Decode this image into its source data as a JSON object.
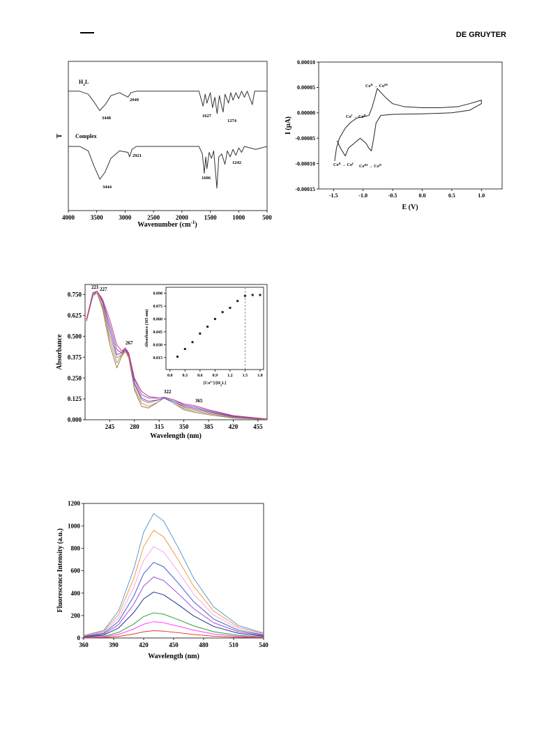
{
  "header": {
    "publisher": "DE GRUYTER"
  },
  "chart_data": [
    {
      "type": "line",
      "xlabel": [
        "Wavenumber (cm",
        "-1",
        ")"
      ],
      "ylabel": "T",
      "xlim": [
        4000,
        500
      ],
      "xticks": [
        4000,
        3500,
        3000,
        2500,
        2000,
        1500,
        1000,
        500
      ],
      "ylim": [
        0,
        100
      ],
      "series": [
        {
          "name": [
            "H",
            "2",
            "L"
          ],
          "color": "#333333",
          "x": [
            4000,
            3800,
            3650,
            3550,
            3448,
            3350,
            3250,
            3100,
            2949,
            2900,
            2800,
            2000,
            1700,
            1627,
            1590,
            1560,
            1500,
            1460,
            1420,
            1380,
            1340,
            1300,
            1274,
            1240,
            1180,
            1140,
            1100,
            1050,
            1000,
            950,
            900,
            850,
            760,
            720,
            500
          ],
          "values": [
            80,
            80,
            78,
            73,
            67,
            71,
            77,
            79,
            76,
            79,
            80,
            80,
            80,
            70,
            78,
            72,
            79,
            69,
            76,
            65,
            77,
            70,
            66,
            78,
            72,
            79,
            74,
            79,
            75,
            80,
            76,
            80,
            71,
            80,
            80
          ]
        },
        {
          "name": "Complex",
          "color": "#333333",
          "x": [
            4000,
            3800,
            3650,
            3550,
            3444,
            3350,
            3250,
            3100,
            2950,
            2921,
            2880,
            2800,
            2000,
            1700,
            1640,
            1606,
            1580,
            1560,
            1520,
            1480,
            1440,
            1384,
            1350,
            1300,
            1242,
            1200,
            1150,
            1100,
            1050,
            1000,
            950,
            900,
            800,
            700,
            500
          ],
          "values": [
            43,
            43,
            40,
            30,
            21,
            26,
            35,
            40,
            39,
            36,
            41,
            43,
            43,
            43,
            38,
            25,
            36,
            28,
            39,
            35,
            40,
            15,
            36,
            38,
            31,
            40,
            36,
            41,
            37,
            42,
            39,
            43,
            42,
            41,
            43
          ]
        }
      ],
      "annotations": [
        "3448",
        "2949",
        "1627",
        "1274",
        "3444",
        "2921",
        "1606",
        "1242"
      ]
    },
    {
      "type": "line",
      "xlabel": "E (V)",
      "ylabel": "I (µA)",
      "xlim": [
        -1.75,
        1.35
      ],
      "xticks": [
        -1.5,
        {
          "value": -1.0,
          "label": "-1.0"
        },
        -0.5,
        {
          "value": 0,
          "label": "0.0"
        },
        0.5,
        {
          "value": 1.0,
          "label": "1.0"
        }
      ],
      "ylim": [
        -0.00015,
        0.0001
      ],
      "yticks": [
        {
          "value": 0.0001,
          "label": "0.00010"
        },
        {
          "value": 5e-05,
          "label": "0.00005"
        },
        {
          "value": 0,
          "label": "0.00000"
        },
        {
          "value": -5e-05,
          "label": "-0.00005"
        },
        {
          "value": -0.0001,
          "label": "-0.00010"
        },
        {
          "value": -0.00015,
          "label": "-0.00015"
        }
      ],
      "series": [
        {
          "color": "#222222",
          "x": [
            -1.48,
            -1.45,
            -1.4,
            -1.3,
            -1.2,
            -1.1,
            -1.0,
            -0.9,
            -0.85,
            -0.8,
            -0.76,
            -0.7,
            -0.6,
            -0.5,
            -0.3,
            0.0,
            0.3,
            0.6,
            0.8,
            1.0,
            1.0,
            0.8,
            0.5,
            0.0,
            -0.5,
            -0.7,
            -0.78,
            -0.82,
            -0.86,
            -0.9,
            -0.95,
            -1.05,
            -1.15,
            -1.25,
            -1.3,
            -1.38,
            -1.44
          ],
          "values": [
            -9.5e-05,
            -7e-05,
            -5e-05,
            -3e-05,
            -1.8e-05,
            -1e-05,
            -8e-06,
            -5e-06,
            1e-05,
            3e-05,
            4.8e-05,
            4e-05,
            2.8e-05,
            1.8e-05,
            1.2e-05,
            1e-05,
            1e-05,
            1.2e-05,
            1.8e-05,
            2.5e-05,
            1.8e-05,
            5e-06,
            0.0,
            -2e-06,
            -3e-06,
            -5e-06,
            -2e-05,
            -5e-05,
            -7.5e-05,
            -7e-05,
            -6e-05,
            -5e-05,
            -6e-05,
            -7e-05,
            -8.5e-05,
            -7e-05,
            -5.5e-05
          ]
        }
      ],
      "annotations": [
        [
          "Co",
          "II",
          " → Co",
          "III"
        ],
        [
          "Co",
          "I",
          " → Co",
          "II"
        ],
        [
          "Co",
          "II",
          " → Co",
          "I"
        ],
        [
          "Co",
          "III",
          " → Co",
          "II"
        ]
      ]
    },
    {
      "type": "line",
      "xlabel": "Wavelength (nm)",
      "ylabel": "Absorbance",
      "xlim": [
        210,
        468
      ],
      "xticks": [
        245,
        280,
        315,
        350,
        385,
        420,
        455
      ],
      "ylim": [
        0,
        0.81
      ],
      "yticks": [
        {
          "value": 0,
          "label": "0.000"
        },
        {
          "value": 0.125,
          "label": "0.125"
        },
        {
          "value": 0.25,
          "label": "0.250"
        },
        {
          "value": 0.375,
          "label": "0.375"
        },
        {
          "value": 0.5,
          "label": "0.500"
        },
        {
          "value": 0.625,
          "label": "0.625"
        },
        {
          "value": 0.75,
          "label": "0.750"
        }
      ],
      "x": [
        212,
        221,
        227,
        235,
        245,
        255,
        262,
        267,
        272,
        280,
        290,
        300,
        315,
        322,
        335,
        350,
        365,
        385,
        420,
        468
      ],
      "series": [
        {
          "color": "#a08040",
          "values": [
            0.59,
            0.74,
            0.76,
            0.66,
            0.45,
            0.31,
            0.38,
            0.41,
            0.37,
            0.18,
            0.08,
            0.07,
            0.11,
            0.13,
            0.1,
            0.06,
            0.045,
            0.03,
            0.01,
            0.002
          ]
        },
        {
          "color": "#9a9a9a",
          "values": [
            0.59,
            0.74,
            0.76,
            0.67,
            0.48,
            0.34,
            0.39,
            0.41,
            0.38,
            0.19,
            0.1,
            0.08,
            0.11,
            0.13,
            0.1,
            0.067,
            0.053,
            0.036,
            0.013,
            0.003
          ]
        },
        {
          "color": "#e07030",
          "values": [
            0.59,
            0.75,
            0.76,
            0.68,
            0.51,
            0.37,
            0.39,
            0.42,
            0.38,
            0.21,
            0.12,
            0.1,
            0.12,
            0.13,
            0.11,
            0.074,
            0.061,
            0.042,
            0.016,
            0.003
          ]
        },
        {
          "color": "#4060d0",
          "values": [
            0.6,
            0.75,
            0.77,
            0.7,
            0.54,
            0.39,
            0.4,
            0.42,
            0.39,
            0.22,
            0.13,
            0.11,
            0.12,
            0.13,
            0.11,
            0.081,
            0.069,
            0.048,
            0.019,
            0.004
          ]
        },
        {
          "color": "#9040c0",
          "values": [
            0.6,
            0.76,
            0.77,
            0.71,
            0.57,
            0.42,
            0.4,
            0.43,
            0.39,
            0.24,
            0.15,
            0.13,
            0.13,
            0.135,
            0.12,
            0.088,
            0.077,
            0.054,
            0.022,
            0.004
          ]
        },
        {
          "color": "#d04080",
          "values": [
            0.6,
            0.76,
            0.77,
            0.72,
            0.6,
            0.45,
            0.41,
            0.43,
            0.4,
            0.25,
            0.17,
            0.14,
            0.13,
            0.135,
            0.12,
            0.095,
            0.085,
            0.06,
            0.025,
            0.005
          ]
        }
      ],
      "annotations": [
        "221",
        "227",
        "267",
        "322",
        "365"
      ]
    },
    {
      "type": "scatter",
      "xlabel": [
        "[Co",
        "2+",
        "]/[H",
        "2",
        "L]"
      ],
      "ylabel": "Absorbance (365 nm)",
      "xlim": [
        -0.08,
        1.87
      ],
      "xticks": [
        {
          "value": 0,
          "label": "0.0"
        },
        0.3,
        0.6,
        0.9,
        1.2,
        1.5,
        1.8
      ],
      "ylim": [
        0.001,
        0.097
      ],
      "yticks": [
        {
          "value": 0.015,
          "label": "0.015"
        },
        {
          "value": 0.03,
          "label": "0.030"
        },
        {
          "value": 0.045,
          "label": "0.045"
        },
        {
          "value": 0.06,
          "label": "0.060"
        },
        {
          "value": 0.075,
          "label": "0.075"
        },
        {
          "value": 0.09,
          "label": "0.090"
        }
      ],
      "color": "#222222",
      "x": [
        0.15,
        0.3,
        0.45,
        0.6,
        0.75,
        0.9,
        1.05,
        1.2,
        1.35,
        1.5,
        1.65,
        1.8
      ],
      "values": [
        0.016,
        0.025,
        0.033,
        0.043,
        0.051,
        0.06,
        0.068,
        0.073,
        0.081,
        0.087,
        0.088,
        0.088
      ],
      "vline": 1.5
    },
    {
      "type": "line",
      "xlabel": "Wavelength (nm)",
      "ylabel": "Fluorescence Intensity (a.u.)",
      "xlim": [
        360,
        540
      ],
      "xticks": [
        360,
        390,
        420,
        450,
        480,
        510,
        540
      ],
      "ylim": [
        0,
        1200
      ],
      "yticks": [
        0,
        200,
        400,
        600,
        800,
        1000,
        1200
      ],
      "x": [
        360,
        380,
        395,
        410,
        420,
        430,
        440,
        455,
        470,
        490,
        515,
        540
      ],
      "series": [
        {
          "color": "#5b9bd5",
          "values": [
            22,
            67,
            244,
            611,
            944,
            1110,
            1043,
            799,
            533,
            278,
            111,
            44
          ]
        },
        {
          "color": "#f39c3b",
          "values": [
            19,
            58,
            211,
            528,
            816,
            960,
            902,
            691,
            461,
            240,
            96,
            38
          ]
        },
        {
          "color": "#f4a8f0",
          "values": [
            16,
            49,
            179,
            448,
            693,
            815,
            766,
            587,
            391,
            204,
            82,
            33
          ]
        },
        {
          "color": "#3a5fd0",
          "values": [
            14,
            41,
            149,
            371,
            574,
            675,
            635,
            486,
            324,
            169,
            68,
            27
          ]
        },
        {
          "color": "#a050d0",
          "values": [
            11,
            33,
            120,
            300,
            463,
            545,
            512,
            392,
            262,
            136,
            55,
            22
          ]
        },
        {
          "color": "#1f2f8f",
          "values": [
            8,
            25,
            90,
            226,
            349,
            410,
            385,
            295,
            197,
            103,
            41,
            16
          ]
        },
        {
          "color": "#2ca02c",
          "values": [
            5,
            14,
            50,
            124,
            191,
            225,
            212,
            162,
            108,
            56,
            23,
            9
          ]
        },
        {
          "color": "#ff40ff",
          "values": [
            3,
            9,
            32,
            80,
            123,
            145,
            136,
            104,
            70,
            36,
            15,
            6
          ]
        },
        {
          "color": "#e03c2c",
          "values": [
            1,
            4,
            14,
            36,
            55,
            65,
            61,
            47,
            31,
            16,
            7,
            3
          ]
        }
      ]
    }
  ]
}
